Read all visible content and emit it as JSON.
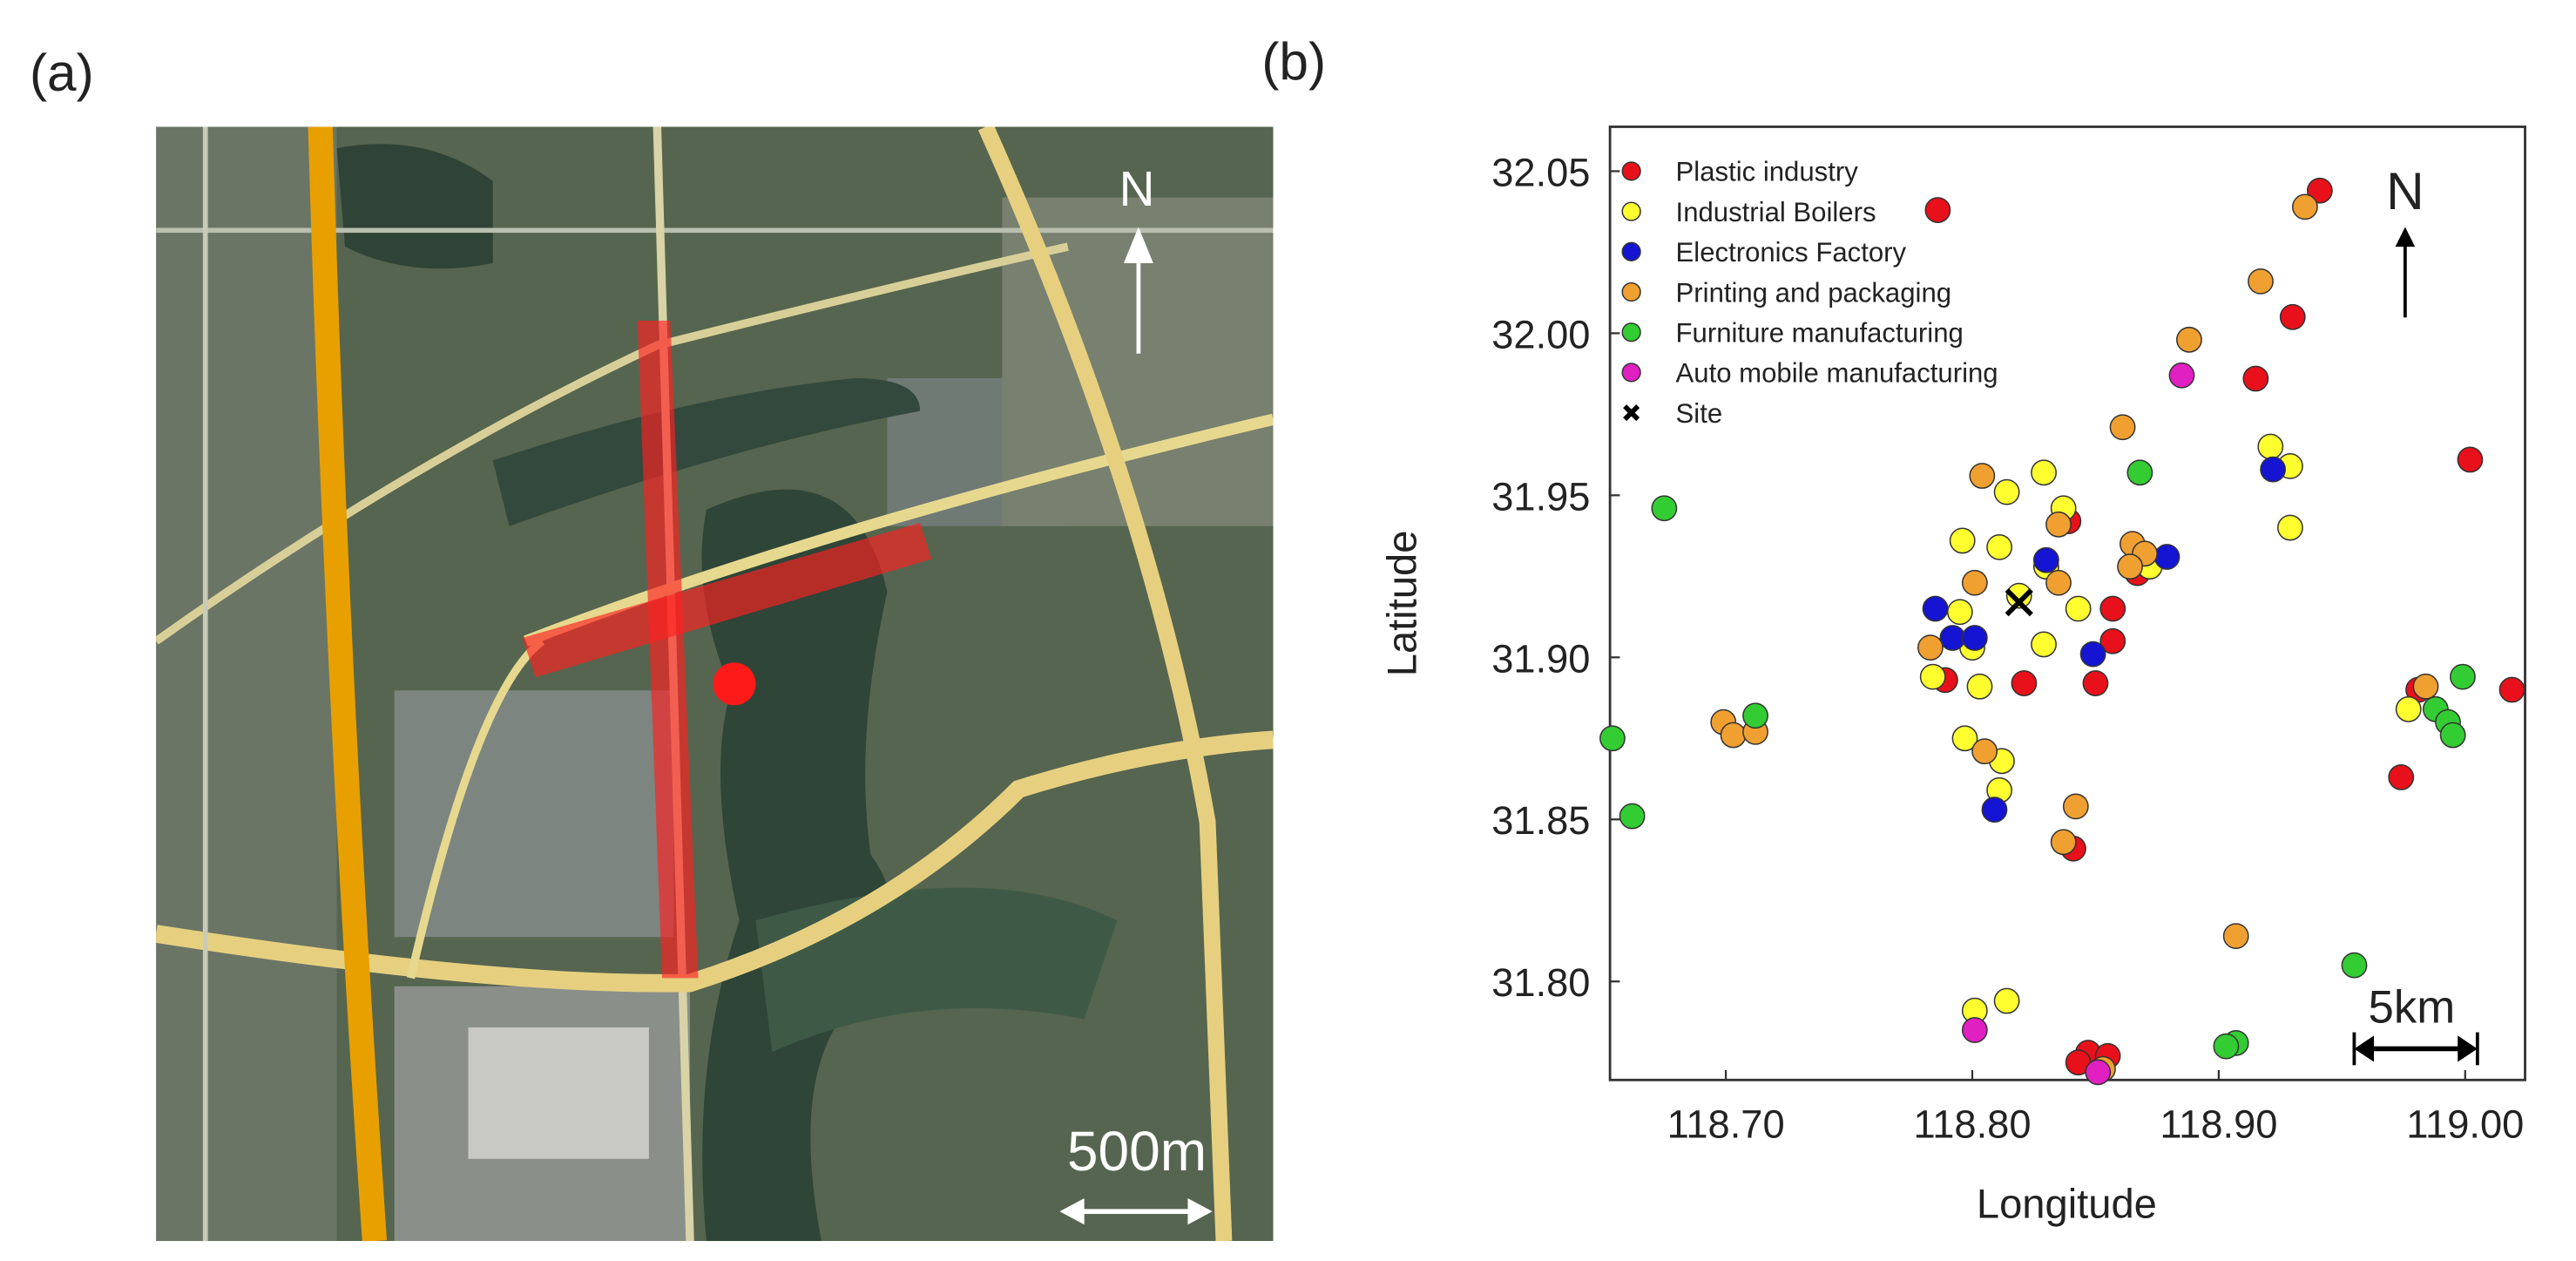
{
  "panel_a": {
    "label": "(a)",
    "north": "N",
    "scale": "500m"
  },
  "chart_data": {
    "type": "scatter",
    "label": "(b)",
    "x_label": "Longitude",
    "y_label": "Latitude",
    "north": "N",
    "scale": "5km",
    "xlim": [
      118.653,
      119.0243
    ],
    "ylim": [
      31.7696,
      32.0637
    ],
    "xticks": [
      {
        "value": 118.7,
        "label": "118.70"
      },
      {
        "value": 118.8,
        "label": "118.80"
      },
      {
        "value": 118.9,
        "label": "118.90"
      },
      {
        "value": 119.0,
        "label": "119.00"
      }
    ],
    "yticks": [
      {
        "value": 31.8,
        "label": "31.80"
      },
      31.85,
      {
        "value": 31.9,
        "label": "31.90"
      },
      31.95,
      {
        "value": 32.0,
        "label": "32.00"
      },
      32.05
    ],
    "legend": "upper left",
    "series": [
      {
        "name": "Plastic industry",
        "color": "#e8101a",
        "marker": "circle",
        "x": [
          118.941,
          118.786,
          118.93,
          118.915,
          119.002,
          119.019,
          118.974,
          118.839,
          118.867,
          118.857,
          118.857,
          118.789,
          118.821,
          118.85,
          118.841,
          118.847,
          118.855,
          118.843,
          118.981
        ],
        "y": [
          32.044,
          32.038,
          32.005,
          31.986,
          31.961,
          31.89,
          31.863,
          31.942,
          31.926,
          31.915,
          31.905,
          31.893,
          31.892,
          31.892,
          31.841,
          31.778,
          31.777,
          31.775,
          31.89
        ]
      },
      {
        "name": "Industrial Boilers",
        "color": "#ffff30",
        "marker": "circle",
        "x": [
          118.814,
          118.796,
          118.811,
          118.829,
          118.837,
          118.843,
          118.83,
          118.795,
          118.8,
          118.784,
          118.803,
          118.829,
          118.797,
          118.812,
          118.811,
          118.801,
          118.814,
          118.921,
          118.929,
          118.929,
          118.977,
          118.872,
          118.819
        ],
        "y": [
          31.951,
          31.936,
          31.934,
          31.957,
          31.946,
          31.915,
          31.928,
          31.914,
          31.903,
          31.894,
          31.891,
          31.904,
          31.875,
          31.868,
          31.859,
          31.791,
          31.794,
          31.965,
          31.959,
          31.94,
          31.884,
          31.928,
          31.919
        ]
      },
      {
        "name": "Electronics Factory",
        "color": "#1414d2",
        "marker": "circle",
        "x": [
          118.83,
          118.785,
          118.792,
          118.801,
          118.849,
          118.809,
          118.879,
          118.922
        ],
        "y": [
          31.93,
          31.915,
          31.906,
          31.906,
          31.901,
          31.853,
          31.931,
          31.958
        ]
      },
      {
        "name": "Printing and packaging",
        "color": "#f0a030",
        "marker": "circle",
        "x": [
          118.888,
          118.935,
          118.917,
          118.861,
          118.804,
          118.801,
          118.783,
          118.835,
          118.865,
          118.87,
          118.864,
          118.699,
          118.703,
          118.712,
          118.805,
          118.842,
          118.837,
          118.907,
          118.853,
          118.984,
          118.835
        ],
        "y": [
          31.998,
          32.039,
          32.016,
          31.971,
          31.956,
          31.923,
          31.903,
          31.923,
          31.935,
          31.932,
          31.928,
          31.88,
          31.876,
          31.877,
          31.871,
          31.854,
          31.843,
          31.814,
          31.773,
          31.891,
          31.941
        ]
      },
      {
        "name": "Furniture manufacturing",
        "color": "#33cc33",
        "marker": "circle",
        "x": [
          118.654,
          118.662,
          118.675,
          118.712,
          118.868,
          118.999,
          118.988,
          118.993,
          118.995,
          118.955,
          118.907,
          118.903
        ],
        "y": [
          31.875,
          31.851,
          31.946,
          31.882,
          31.957,
          31.894,
          31.884,
          31.88,
          31.876,
          31.805,
          31.781,
          31.78
        ]
      },
      {
        "name": "Auto mobile manufacturing",
        "color": "#e020c0",
        "marker": "circle",
        "x": [
          118.885,
          118.801,
          118.851
        ],
        "y": [
          31.987,
          31.785,
          31.772
        ]
      },
      {
        "name": "Site",
        "color": "#000000",
        "marker": "cross",
        "x": [
          118.819
        ],
        "y": [
          31.917
        ]
      }
    ]
  }
}
